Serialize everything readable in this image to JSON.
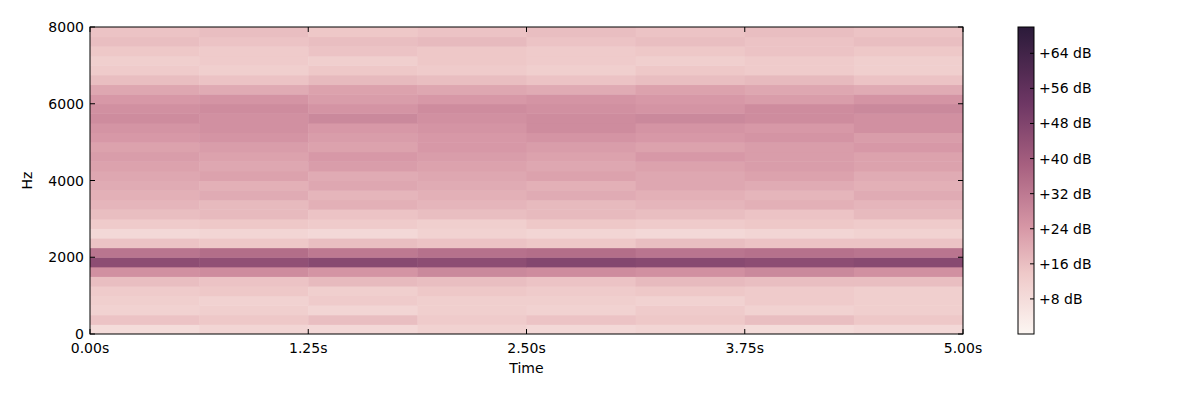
{
  "chart_data": {
    "type": "heatmap",
    "x_label": "Time",
    "y_label": "Hz",
    "xlim": [
      0,
      5
    ],
    "ylim": [
      0,
      8000
    ],
    "xticks": [
      {
        "value": 0,
        "label": "0.00s"
      },
      {
        "value": 1.25,
        "label": "1.25s"
      },
      {
        "value": 2.5,
        "label": "2.50s"
      },
      {
        "value": 3.75,
        "label": "3.75s"
      },
      {
        "value": 5,
        "label": "5.00s"
      }
    ],
    "yticks": [
      0,
      2000,
      4000,
      6000,
      8000
    ],
    "z": [
      [
        8,
        10,
        9,
        11,
        9,
        10,
        8,
        9
      ],
      [
        15,
        14,
        16,
        13,
        15,
        14,
        16,
        14
      ],
      [
        11,
        12,
        10,
        12,
        11,
        13,
        11,
        12
      ],
      [
        12,
        11,
        13,
        12,
        12,
        11,
        13,
        12
      ],
      [
        13,
        14,
        12,
        14,
        13,
        14,
        13,
        12
      ],
      [
        16,
        15,
        17,
        16,
        15,
        17,
        16,
        16
      ],
      [
        26,
        27,
        25,
        28,
        27,
        26,
        28,
        26
      ],
      [
        45,
        44,
        46,
        45,
        47,
        46,
        45,
        46
      ],
      [
        33,
        35,
        32,
        34,
        35,
        33,
        34,
        33
      ],
      [
        15,
        14,
        16,
        15,
        14,
        16,
        15,
        15
      ],
      [
        9,
        10,
        9,
        11,
        10,
        9,
        10,
        11
      ],
      [
        13,
        14,
        13,
        12,
        14,
        13,
        14,
        13
      ],
      [
        16,
        17,
        15,
        16,
        17,
        16,
        15,
        17
      ],
      [
        18,
        17,
        19,
        18,
        17,
        18,
        19,
        18
      ],
      [
        19,
        20,
        18,
        19,
        20,
        19,
        18,
        20
      ],
      [
        20,
        19,
        21,
        20,
        19,
        21,
        20,
        19
      ],
      [
        21,
        22,
        20,
        21,
        22,
        21,
        22,
        20
      ],
      [
        22,
        21,
        23,
        22,
        21,
        22,
        23,
        22
      ],
      [
        23,
        22,
        24,
        23,
        22,
        24,
        23,
        22
      ],
      [
        22,
        23,
        22,
        24,
        23,
        22,
        23,
        24
      ],
      [
        24,
        25,
        23,
        24,
        25,
        24,
        25,
        23
      ],
      [
        25,
        26,
        24,
        25,
        27,
        25,
        24,
        26
      ],
      [
        27,
        26,
        28,
        26,
        27,
        28,
        27,
        26
      ],
      [
        26,
        27,
        25,
        27,
        26,
        25,
        27,
        28
      ],
      [
        24,
        25,
        23,
        24,
        25,
        24,
        23,
        25
      ],
      [
        21,
        20,
        22,
        21,
        20,
        22,
        21,
        20
      ],
      [
        16,
        15,
        17,
        16,
        15,
        16,
        17,
        15
      ],
      [
        13,
        12,
        14,
        13,
        12,
        14,
        13,
        12
      ],
      [
        12,
        13,
        12,
        14,
        13,
        12,
        13,
        12
      ],
      [
        14,
        13,
        15,
        14,
        13,
        14,
        15,
        14
      ],
      [
        16,
        15,
        16,
        17,
        15,
        16,
        15,
        16
      ],
      [
        15,
        16,
        14,
        15,
        16,
        15,
        16,
        15
      ]
    ],
    "zlim": [
      0,
      70
    ],
    "zticks": [
      {
        "value": 8,
        "label": "+8 dB"
      },
      {
        "value": 16,
        "label": "+16 dB"
      },
      {
        "value": 24,
        "label": "+24 dB"
      },
      {
        "value": 32,
        "label": "+32 dB"
      },
      {
        "value": 40,
        "label": "+40 dB"
      },
      {
        "value": 48,
        "label": "+48 dB"
      },
      {
        "value": 56,
        "label": "+56 dB"
      },
      {
        "value": 64,
        "label": "+64 dB"
      }
    ]
  }
}
